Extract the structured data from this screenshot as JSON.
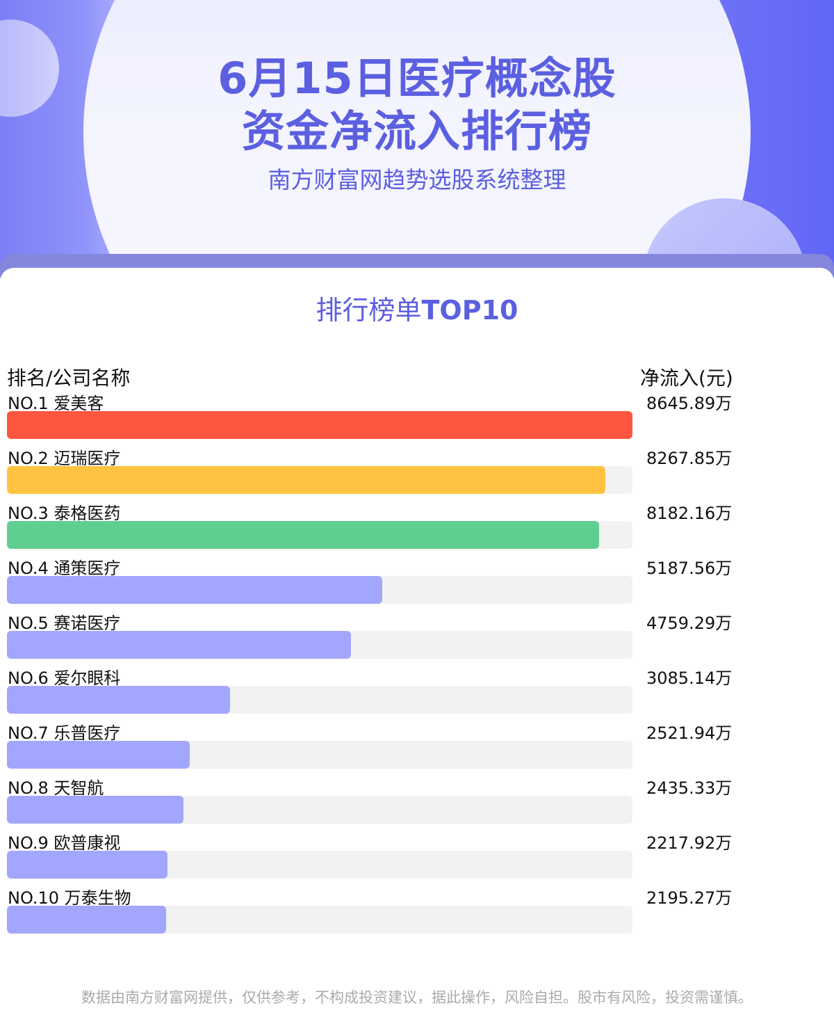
{
  "header": {
    "title_line1": "6月15日医疗概念股",
    "title_line2": "资金净流入排行榜",
    "subtitle": "南方财富网趋势选股系统整理"
  },
  "section": {
    "title_prefix": "排行榜单",
    "title_suffix": "TOP10"
  },
  "chart_data": {
    "type": "bar",
    "orientation": "horizontal",
    "header_left": "排名/公司名称",
    "header_right": "净流入(元)",
    "categories": [
      "NO.1 爱美客",
      "NO.2 迈瑞医疗",
      "NO.3 泰格医药",
      "NO.4 通策医疗",
      "NO.5 赛诺医疗",
      "NO.6 爱尔眼科",
      "NO.7 乐普医疗",
      "NO.8 天智航",
      "NO.9 欧普康视",
      "NO.10 万泰生物"
    ],
    "values": [
      8645.89,
      8267.85,
      8182.16,
      5187.56,
      4759.29,
      3085.14,
      2521.94,
      2435.33,
      2217.92,
      2195.27
    ],
    "value_labels": [
      "8645.89万",
      "8267.85万",
      "8182.16万",
      "5187.56万",
      "4759.29万",
      "3085.14万",
      "2521.94万",
      "2435.33万",
      "2217.92万",
      "2195.27万"
    ],
    "unit": "万",
    "colors": [
      "#ff5640",
      "#ffc341",
      "#5fce90",
      "#a3a6fd",
      "#a3a6fd",
      "#a3a6fd",
      "#a3a6fd",
      "#a3a6fd",
      "#a3a6fd",
      "#a3a6fd"
    ],
    "track_color": "#f2f2f2"
  },
  "footer": {
    "disclaimer": "数据由南方财富网提供，仅供参考，不构成投资建议，据此操作，风险自担。股市有风险，投资需谨慎。"
  }
}
